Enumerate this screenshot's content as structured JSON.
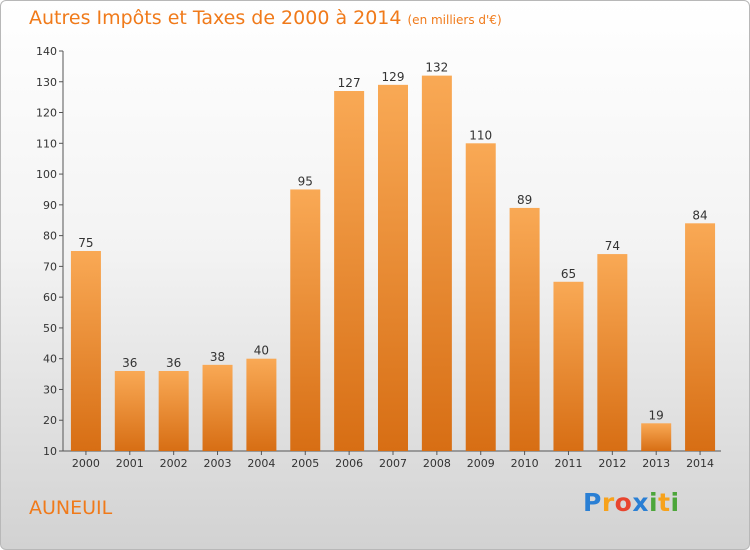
{
  "title": "Autres Impôts et Taxes de 2000 à 2014",
  "unit_note": "(en milliers d'€)",
  "location": "AUNEUIL",
  "logo": {
    "text": "Proxiti",
    "letters": [
      {
        "ch": "P",
        "color": "#2a7fd4"
      },
      {
        "ch": "r",
        "color": "#f7a21b"
      },
      {
        "ch": "o",
        "color": "#e8452e"
      },
      {
        "ch": "x",
        "color": "#2a7fd4"
      },
      {
        "ch": "i",
        "color": "#4ca63a"
      },
      {
        "ch": "t",
        "color": "#f7a21b"
      },
      {
        "ch": "i",
        "color": "#4ca63a"
      }
    ]
  },
  "colors": {
    "bar_light": "#f9a955",
    "bar_dark": "#d76e14",
    "title": "#f07a1a"
  },
  "chart_data": {
    "type": "bar",
    "title": "Autres Impôts et Taxes de 2000 à 2014",
    "subtitle": "(en milliers d'€)",
    "xlabel": "",
    "ylabel": "",
    "categories": [
      "2000",
      "2001",
      "2002",
      "2003",
      "2004",
      "2005",
      "2006",
      "2007",
      "2008",
      "2009",
      "2010",
      "2011",
      "2012",
      "2013",
      "2014"
    ],
    "values": [
      75,
      36,
      36,
      38,
      40,
      95,
      127,
      129,
      132,
      110,
      89,
      65,
      74,
      19,
      84
    ],
    "ylim": [
      10,
      140
    ],
    "yticks": [
      10,
      20,
      30,
      40,
      50,
      60,
      70,
      80,
      90,
      100,
      110,
      120,
      130,
      140
    ],
    "grid": false,
    "legend": "none"
  }
}
